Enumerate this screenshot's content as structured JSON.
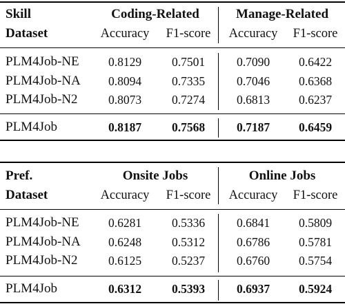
{
  "tables": [
    {
      "corner_line1": "Skill",
      "corner_line2": "Dataset",
      "group1": "Coding-Related",
      "group2": "Manage-Related",
      "col1": "Accuracy",
      "col2": "F1-score",
      "col3": "Accuracy",
      "col4": "F1-score",
      "rows": [
        {
          "name": "PLM4Job-NE",
          "v": [
            "0.8129",
            "0.7501",
            "0.7090",
            "0.6422"
          ]
        },
        {
          "name": "PLM4Job-NA",
          "v": [
            "0.8094",
            "0.7335",
            "0.7046",
            "0.6368"
          ]
        },
        {
          "name": "PLM4Job-N2",
          "v": [
            "0.8073",
            "0.7274",
            "0.6813",
            "0.6237"
          ]
        }
      ],
      "final": {
        "name": "PLM4Job",
        "v": [
          "0.8187",
          "0.7568",
          "0.7187",
          "0.6459"
        ]
      }
    },
    {
      "corner_line1": "Pref.",
      "corner_line2": "Dataset",
      "group1": "Onsite Jobs",
      "group2": "Online Jobs",
      "col1": "Accuracy",
      "col2": "F1-score",
      "col3": "Accuracy",
      "col4": "F1-score",
      "rows": [
        {
          "name": "PLM4Job-NE",
          "v": [
            "0.6281",
            "0.5336",
            "0.6841",
            "0.5809"
          ]
        },
        {
          "name": "PLM4Job-NA",
          "v": [
            "0.6248",
            "0.5312",
            "0.6786",
            "0.5781"
          ]
        },
        {
          "name": "PLM4Job-N2",
          "v": [
            "0.6125",
            "0.5237",
            "0.6760",
            "0.5754"
          ]
        }
      ],
      "final": {
        "name": "PLM4Job",
        "v": [
          "0.6312",
          "0.5393",
          "0.6937",
          "0.5924"
        ]
      }
    }
  ]
}
